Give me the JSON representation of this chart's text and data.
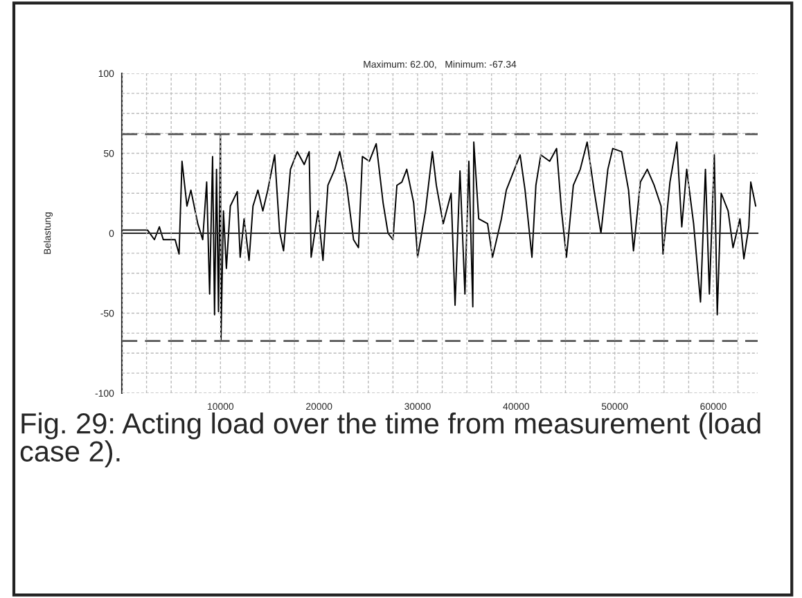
{
  "chart_data": {
    "type": "line",
    "title": "Maximum: 62.00,   Minimum: -67.34",
    "ylabel": "Belastung",
    "annotations": [
      "Fig. 29: Acting load over the time from measurement (load case 2)."
    ],
    "x": [
      0,
      2600,
      3300,
      3800,
      4200,
      5400,
      5800,
      6100,
      6600,
      7000,
      7700,
      8200,
      8600,
      8900,
      9200,
      9400,
      9600,
      9800,
      10000,
      10050,
      10300,
      10600,
      11000,
      11700,
      12000,
      12400,
      12900,
      13300,
      13800,
      14300,
      14800,
      15500,
      16000,
      16400,
      17100,
      17800,
      18500,
      19000,
      19200,
      19900,
      20400,
      20900,
      21600,
      22100,
      22800,
      23500,
      24000,
      24400,
      25100,
      25800,
      26500,
      27000,
      27500,
      27900,
      28400,
      28900,
      29600,
      30000,
      30800,
      31500,
      31900,
      32600,
      33400,
      33800,
      34300,
      34800,
      35200,
      35600,
      35700,
      36200,
      37100,
      37600,
      38500,
      39000,
      39700,
      40400,
      40900,
      41600,
      42000,
      42500,
      43400,
      44100,
      44600,
      45100,
      45800,
      46500,
      47200,
      47900,
      48600,
      49300,
      49800,
      50700,
      51400,
      51900,
      52600,
      53300,
      54000,
      54700,
      54900,
      55600,
      56300,
      56800,
      57300,
      58000,
      58700,
      59200,
      59600,
      60100,
      60400,
      60800,
      61500,
      62000,
      62700,
      63100,
      63600,
      63800,
      64300
    ],
    "series": [
      {
        "color": "#000000",
        "values": [
          2,
          2,
          -4,
          4,
          -4,
          -4,
          -13,
          45,
          17,
          27,
          6,
          -4,
          32,
          -38,
          48,
          -51,
          40,
          -49,
          62.0,
          -67.34,
          14,
          -22,
          17,
          26,
          -15,
          9,
          -17,
          17,
          27,
          14,
          27,
          49,
          1,
          -11,
          40,
          51,
          43,
          51,
          -15,
          14,
          -17,
          30,
          40,
          51,
          30,
          -4,
          -9,
          48,
          45,
          56,
          19,
          0,
          -4,
          30,
          32,
          40,
          19,
          -15,
          14,
          51,
          30,
          6,
          25,
          -45,
          39,
          -38,
          45,
          -46,
          57,
          9,
          6,
          -15,
          9,
          27,
          38,
          49,
          27,
          -15,
          30,
          49,
          45,
          53,
          14,
          -15,
          30,
          40,
          57,
          27,
          0,
          40,
          53,
          51,
          27,
          -11,
          32,
          40,
          30,
          17,
          -13,
          32,
          57,
          4,
          40,
          6,
          -43,
          40,
          -38,
          49,
          -51,
          25,
          14,
          -9,
          9,
          -16,
          4,
          32,
          17
        ]
      }
    ],
    "xlim": [
      0,
      64500
    ],
    "xticks": [
      {
        "value": 0,
        "label": null
      },
      {
        "value": 2500,
        "label": null
      },
      {
        "value": 5000,
        "label": null
      },
      {
        "value": 7500,
        "label": null
      },
      10000,
      {
        "value": 12500,
        "label": null
      },
      {
        "value": 15000,
        "label": null
      },
      {
        "value": 17500,
        "label": null
      },
      20000,
      {
        "value": 22500,
        "label": null
      },
      {
        "value": 25000,
        "label": null
      },
      {
        "value": 27500,
        "label": null
      },
      30000,
      {
        "value": 32500,
        "label": null
      },
      {
        "value": 35000,
        "label": null
      },
      {
        "value": 37500,
        "label": null
      },
      40000,
      {
        "value": 42500,
        "label": null
      },
      {
        "value": 45000,
        "label": null
      },
      {
        "value": 47500,
        "label": null
      },
      50000,
      {
        "value": 52500,
        "label": null
      },
      {
        "value": 55000,
        "label": null
      },
      {
        "value": 57500,
        "label": null
      },
      60000,
      {
        "value": 62500,
        "label": null
      }
    ],
    "ylim": [
      -100,
      100
    ],
    "yticks": [
      -100,
      {
        "value": -87.5,
        "label": null
      },
      {
        "value": -75,
        "label": null
      },
      {
        "value": -62.5,
        "label": null
      },
      -50,
      {
        "value": -37.5,
        "label": null
      },
      {
        "value": -25,
        "label": null
      },
      {
        "value": -12.5,
        "label": null
      },
      0,
      {
        "value": 12.5,
        "label": null
      },
      {
        "value": 25,
        "label": null
      },
      {
        "value": 37.5,
        "label": null
      },
      50,
      {
        "value": 62.5,
        "label": null
      },
      {
        "value": 75,
        "label": null
      },
      {
        "value": 87.5,
        "label": null
      },
      100
    ],
    "ref_lines": [
      {
        "axis": "y",
        "value": 62.0,
        "color": "#555555",
        "line_style": "dashed"
      },
      {
        "axis": "y",
        "value": -67.34,
        "color": "#555555",
        "line_style": "dashed"
      }
    ],
    "grid": true,
    "legend": false,
    "marker": "none",
    "line_style": "solid"
  }
}
